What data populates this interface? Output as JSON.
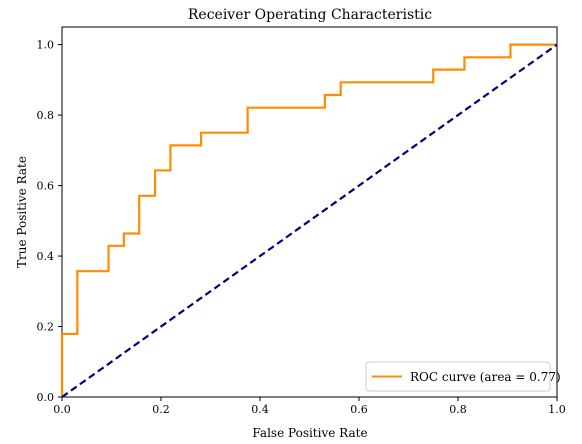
{
  "chart_data": {
    "type": "line",
    "title": "Receiver Operating Characteristic",
    "xlabel": "False Positive Rate",
    "ylabel": "True Positive Rate",
    "xlim": [
      0.0,
      1.0
    ],
    "ylim": [
      0.0,
      1.05
    ],
    "x_ticks": [
      "0.0",
      "0.2",
      "0.4",
      "0.6",
      "0.8",
      "1.0"
    ],
    "y_ticks": [
      "0.0",
      "0.2",
      "0.4",
      "0.6",
      "0.8",
      "1.0"
    ],
    "grid": false,
    "legend_position": "lower-right",
    "series": [
      {
        "name": "ROC curve (area = 0.77)",
        "color": "#ff8c00",
        "style": "step",
        "x": [
          0.0,
          0.0,
          0.0,
          0.031,
          0.031,
          0.094,
          0.094,
          0.125,
          0.125,
          0.156,
          0.156,
          0.188,
          0.188,
          0.219,
          0.219,
          0.281,
          0.281,
          0.375,
          0.375,
          0.531,
          0.531,
          0.563,
          0.563,
          0.75,
          0.75,
          0.813,
          0.813,
          0.906,
          0.906,
          1.0
        ],
        "y": [
          0.0,
          0.0,
          0.179,
          0.179,
          0.357,
          0.357,
          0.429,
          0.429,
          0.464,
          0.464,
          0.571,
          0.571,
          0.643,
          0.643,
          0.714,
          0.714,
          0.75,
          0.75,
          0.821,
          0.821,
          0.857,
          0.857,
          0.893,
          0.893,
          0.929,
          0.929,
          0.964,
          0.964,
          1.0,
          1.0
        ]
      },
      {
        "name": "",
        "color": "#000080",
        "style": "dashed",
        "x": [
          0.0,
          1.0
        ],
        "y": [
          0.0,
          1.0
        ]
      }
    ]
  }
}
